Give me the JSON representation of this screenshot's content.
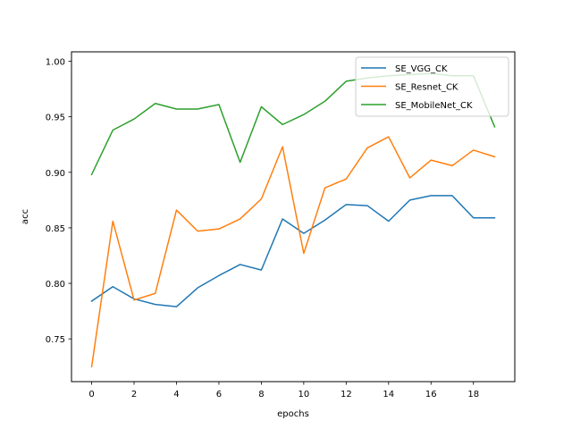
{
  "chart_data": {
    "type": "line",
    "title": "",
    "xlabel": "epochs",
    "ylabel": "acc",
    "x": [
      0,
      1,
      2,
      3,
      4,
      5,
      6,
      7,
      8,
      9,
      10,
      11,
      12,
      13,
      14,
      15,
      16,
      17,
      18,
      19
    ],
    "xlim": [
      -0.95,
      19.95
    ],
    "ylim": [
      0.7115,
      1.0085
    ],
    "xticks": [
      0,
      2,
      4,
      6,
      8,
      10,
      12,
      14,
      16,
      18
    ],
    "yticks": [
      0.75,
      0.8,
      0.85,
      0.9,
      0.95,
      1.0
    ],
    "ytick_labels": [
      "0.75",
      "0.80",
      "0.85",
      "0.90",
      "0.95",
      "1.00"
    ],
    "grid": false,
    "legend_position": "top-right",
    "series": [
      {
        "name": "SE_VGG_CK",
        "color": "#1f77b4",
        "values": [
          0.784,
          0.797,
          0.786,
          0.781,
          0.779,
          0.796,
          0.807,
          0.817,
          0.812,
          0.858,
          0.845,
          0.857,
          0.871,
          0.87,
          0.856,
          0.875,
          0.879,
          0.879,
          0.859,
          0.859
        ]
      },
      {
        "name": "SE_Resnet_CK",
        "color": "#ff7f0e",
        "values": [
          0.725,
          0.856,
          0.785,
          0.791,
          0.866,
          0.847,
          0.849,
          0.858,
          0.876,
          0.923,
          0.827,
          0.886,
          0.894,
          0.922,
          0.932,
          0.895,
          0.911,
          0.906,
          0.92,
          0.914
        ]
      },
      {
        "name": "SE_MobileNet_CK",
        "color": "#2ca02c",
        "values": [
          0.898,
          0.938,
          0.948,
          0.962,
          0.957,
          0.957,
          0.961,
          0.909,
          0.959,
          0.943,
          0.952,
          0.964,
          0.982,
          0.985,
          0.987,
          0.988,
          0.989,
          0.987,
          0.987,
          0.941
        ]
      }
    ]
  }
}
